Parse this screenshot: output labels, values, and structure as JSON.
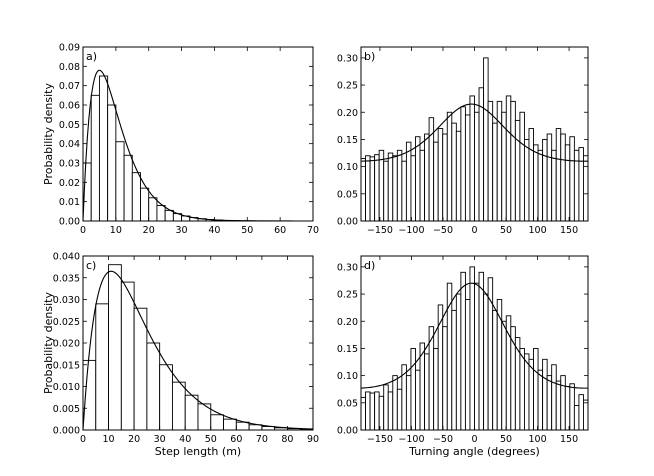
{
  "chart_data": [
    {
      "type": "bar",
      "panel_label": "a)",
      "xlabel": "",
      "ylabel": "Probability density",
      "xlim": [
        0,
        70
      ],
      "ylim": [
        0,
        0.09
      ],
      "xticks": [
        "0",
        "10",
        "20",
        "30",
        "40",
        "50",
        "60",
        "70"
      ],
      "yticks": [
        "0.00",
        "0.01",
        "0.02",
        "0.03",
        "0.04",
        "0.05",
        "0.06",
        "0.07",
        "0.08",
        "0.09"
      ],
      "bin_width": 2.5,
      "values": [
        0.03,
        0.065,
        0.075,
        0.06,
        0.041,
        0.034,
        0.025,
        0.017,
        0.012,
        0.008,
        0.0055,
        0.0038,
        0.0026,
        0.0018,
        0.0012,
        0.0008,
        0.0005,
        0.0003,
        0.0002,
        0.00015,
        0.0001,
        7e-05,
        5e-05,
        3e-05,
        2e-05
      ],
      "fit_curve": {
        "kind": "gamma",
        "peak_x": 5,
        "peak_y": 0.078
      }
    },
    {
      "type": "bar",
      "panel_label": "b)",
      "xlabel": "",
      "ylabel": "",
      "xlim": [
        -180,
        180
      ],
      "ylim": [
        0,
        0.32
      ],
      "xticks": [
        "−150",
        "−100",
        "−50",
        "0",
        "50",
        "100",
        "150"
      ],
      "yticks": [
        "0.00",
        "0.05",
        "0.10",
        "0.15",
        "0.20",
        "0.25",
        "0.30"
      ],
      "bin_width": 7.2,
      "values": [
        0.115,
        0.12,
        0.118,
        0.122,
        0.13,
        0.11,
        0.125,
        0.12,
        0.13,
        0.11,
        0.145,
        0.12,
        0.155,
        0.13,
        0.16,
        0.19,
        0.145,
        0.17,
        0.16,
        0.2,
        0.18,
        0.165,
        0.21,
        0.195,
        0.23,
        0.2,
        0.245,
        0.3,
        0.22,
        0.18,
        0.22,
        0.2,
        0.23,
        0.22,
        0.185,
        0.2,
        0.15,
        0.17,
        0.14,
        0.13,
        0.15,
        0.16,
        0.13,
        0.17,
        0.16,
        0.14,
        0.155,
        0.13,
        0.135,
        0.12
      ],
      "fit_curve": {
        "kind": "von_mises",
        "mu": -5,
        "peak_y": 0.215,
        "base_y": 0.11
      }
    },
    {
      "type": "bar",
      "panel_label": "c)",
      "xlabel": "Step length (m)",
      "ylabel": "Probability density",
      "xlim": [
        0,
        90
      ],
      "ylim": [
        0,
        0.04
      ],
      "xticks": [
        "0",
        "10",
        "20",
        "30",
        "40",
        "50",
        "60",
        "70",
        "80",
        "90"
      ],
      "yticks": [
        "0.000",
        "0.005",
        "0.010",
        "0.015",
        "0.020",
        "0.025",
        "0.030",
        "0.035",
        "0.040"
      ],
      "bin_width": 5,
      "values": [
        0.016,
        0.029,
        0.038,
        0.034,
        0.028,
        0.02,
        0.015,
        0.011,
        0.008,
        0.006,
        0.0035,
        0.0025,
        0.0018,
        0.0012,
        0.0008,
        0.0005,
        0.0003,
        0.0001
      ],
      "fit_curve": {
        "kind": "gamma",
        "peak_x": 11,
        "peak_y": 0.0365
      }
    },
    {
      "type": "bar",
      "panel_label": "d)",
      "xlabel": "Turning angle (degrees)",
      "ylabel": "",
      "xlim": [
        -180,
        180
      ],
      "ylim": [
        0,
        0.32
      ],
      "xticks": [
        "−150",
        "−100",
        "−50",
        "0",
        "50",
        "100",
        "150"
      ],
      "yticks": [
        "0.00",
        "0.05",
        "0.10",
        "0.15",
        "0.20",
        "0.25",
        "0.30"
      ],
      "bin_width": 7.2,
      "values": [
        0.06,
        0.07,
        0.068,
        0.07,
        0.062,
        0.083,
        0.07,
        0.1,
        0.075,
        0.12,
        0.1,
        0.15,
        0.11,
        0.16,
        0.14,
        0.19,
        0.15,
        0.23,
        0.19,
        0.27,
        0.22,
        0.25,
        0.29,
        0.24,
        0.3,
        0.27,
        0.29,
        0.25,
        0.28,
        0.22,
        0.24,
        0.2,
        0.21,
        0.19,
        0.17,
        0.15,
        0.14,
        0.13,
        0.15,
        0.11,
        0.13,
        0.1,
        0.12,
        0.09,
        0.1,
        0.08,
        0.085,
        0.045,
        0.065,
        0.055
      ],
      "fit_curve": {
        "kind": "von_mises",
        "mu": -5,
        "peak_y": 0.27,
        "base_y": 0.077
      }
    }
  ]
}
